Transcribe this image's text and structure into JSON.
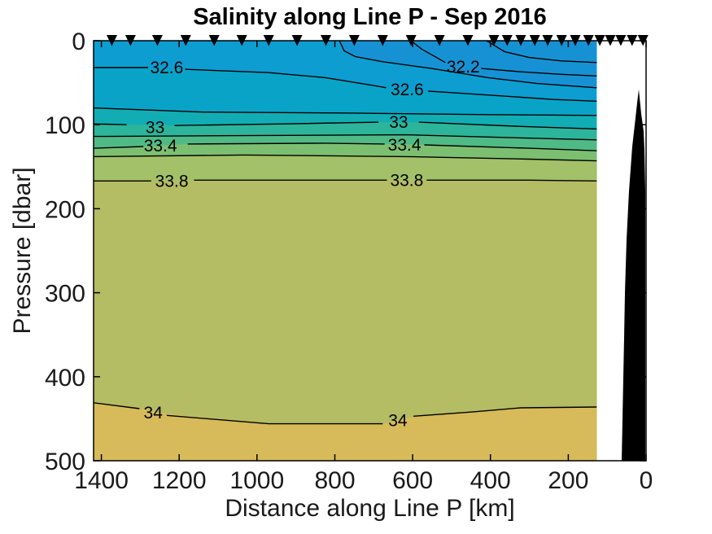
{
  "chart_data": {
    "type": "heatmap",
    "subtype": "filled-contour-section",
    "title": "Salinity along Line P - Sep 2016",
    "xlabel": "Distance along Line P [km]",
    "ylabel": "Pressure [dbar]",
    "xlim": [
      1420,
      0
    ],
    "ylim": [
      0,
      500
    ],
    "x_axis_reversed": true,
    "y_axis_reversed": true,
    "grid": false,
    "x_ticks": [
      1400,
      1200,
      1000,
      800,
      600,
      400,
      200,
      0
    ],
    "y_ticks": [
      0,
      100,
      200,
      300,
      400,
      500
    ],
    "data_min_km": 127,
    "surface_band_index": 3,
    "contour_interval": 0.2,
    "bands": [
      {
        "range": "< 32.0",
        "color": "#2B6AE1"
      },
      {
        "range": "32.0 - 32.2",
        "color": "#1F81D8"
      },
      {
        "range": "32.2 - 32.4",
        "color": "#1692D4"
      },
      {
        "range": "32.4 - 32.6",
        "color": "#0D9DD1"
      },
      {
        "range": "32.6 - 32.8",
        "color": "#0AA3C8"
      },
      {
        "range": "32.8 - 33.0",
        "color": "#12ADB4"
      },
      {
        "range": "33.0 - 33.2",
        "color": "#2CB59A"
      },
      {
        "range": "33.2 - 33.4",
        "color": "#4FBA85"
      },
      {
        "range": "33.4 - 33.6",
        "color": "#7CBF71"
      },
      {
        "range": "33.6 - 33.8",
        "color": "#A2C168"
      },
      {
        "range": "33.8 - 34.0",
        "color": "#B4BC64"
      },
      {
        "range": "> 34.0",
        "color": "#D7BA59"
      }
    ],
    "contours": [
      {
        "level": 32.0,
        "fill": {
          "mode": "above",
          "band": 0
        },
        "points": [
          [
            410,
            0
          ],
          [
            364,
            13
          ],
          [
            301,
            20
          ],
          [
            218,
            24
          ],
          [
            127,
            26
          ]
        ],
        "segments": [
          [
            [
              410,
              0
            ],
            [
              364,
              13
            ],
            [
              301,
              20
            ],
            [
              218,
              24
            ],
            [
              127,
              26
            ]
          ]
        ],
        "labels": []
      },
      {
        "level": 32.2,
        "fill": {
          "mode": "above",
          "band": 1
        },
        "points": [
          [
            604,
            0
          ],
          [
            577,
            10
          ],
          [
            542,
            19
          ],
          [
            516,
            26
          ],
          [
            470,
            31
          ],
          [
            424,
            33
          ],
          [
            322,
            37
          ],
          [
            218,
            40
          ],
          [
            127,
            42
          ]
        ],
        "segments": [
          [
            [
              604,
              0
            ],
            [
              577,
              10
            ],
            [
              542,
              19
            ],
            [
              516,
              26
            ]
          ],
          [
            [
              424,
              33
            ],
            [
              322,
              37
            ],
            [
              218,
              40
            ],
            [
              127,
              42
            ]
          ]
        ],
        "labels": [
          {
            "text": "32.2",
            "x": 470,
            "y": 31
          }
        ]
      },
      {
        "level": 32.4,
        "fill": {
          "mode": "above",
          "band": 2
        },
        "points": [
          [
            788,
            0
          ],
          [
            776,
            12
          ],
          [
            747,
            19
          ],
          [
            677,
            25
          ],
          [
            552,
            33
          ],
          [
            406,
            44
          ],
          [
            280,
            51
          ],
          [
            127,
            56
          ]
        ],
        "segments": [
          [
            [
              788,
              0
            ],
            [
              776,
              12
            ],
            [
              747,
              19
            ],
            [
              677,
              25
            ],
            [
              552,
              33
            ],
            [
              406,
              44
            ],
            [
              280,
              51
            ],
            [
              127,
              56
            ]
          ]
        ],
        "labels": []
      },
      {
        "level": 32.6,
        "fill": {
          "mode": "below",
          "band": 4
        },
        "points": [
          [
            1420,
            32
          ],
          [
            1280,
            32
          ],
          [
            1185,
            34
          ],
          [
            970,
            38
          ],
          [
            824,
            44
          ],
          [
            692,
            54
          ],
          [
            615,
            58
          ],
          [
            531,
            61
          ],
          [
            364,
            66
          ],
          [
            238,
            70
          ],
          [
            127,
            72
          ]
        ],
        "segments": [
          [
            [
              1420,
              32
            ],
            [
              1280,
              32
            ]
          ],
          [
            [
              1185,
              34
            ],
            [
              970,
              38
            ],
            [
              824,
              44
            ],
            [
              692,
              54
            ],
            [
              668,
              56
            ]
          ],
          [
            [
              560,
              60
            ],
            [
              364,
              66
            ],
            [
              238,
              70
            ],
            [
              127,
              72
            ]
          ]
        ],
        "labels": [
          {
            "text": "32.6",
            "x": 1232,
            "y": 32
          },
          {
            "text": "32.6",
            "x": 614,
            "y": 58
          }
        ]
      },
      {
        "level": 32.8,
        "fill": {
          "mode": "below",
          "band": 5
        },
        "points": [
          [
            1420,
            80
          ],
          [
            1138,
            85
          ],
          [
            782,
            86
          ],
          [
            406,
            88
          ],
          [
            127,
            89
          ]
        ],
        "segments": [
          [
            [
              1420,
              80
            ],
            [
              1138,
              85
            ],
            [
              782,
              86
            ],
            [
              406,
              88
            ],
            [
              127,
              89
            ]
          ]
        ],
        "labels": []
      },
      {
        "level": 33.0,
        "fill": {
          "mode": "below",
          "band": 6
        },
        "points": [
          [
            1420,
            99
          ],
          [
            1330,
            100
          ],
          [
            1222,
            101
          ],
          [
            929,
            99
          ],
          [
            682,
            97
          ],
          [
            590,
            97
          ],
          [
            322,
            102
          ],
          [
            127,
            105
          ]
        ],
        "segments": [
          [
            [
              1420,
              99
            ],
            [
              1335,
              100
            ]
          ],
          [
            [
              1212,
              101
            ],
            [
              929,
              99
            ],
            [
              688,
              97
            ]
          ],
          [
            [
              584,
              97
            ],
            [
              322,
              102
            ],
            [
              127,
              105
            ]
          ]
        ],
        "labels": [
          {
            "text": "33",
            "x": 1262,
            "y": 103
          },
          {
            "text": "33",
            "x": 636,
            "y": 97
          }
        ]
      },
      {
        "level": 33.2,
        "fill": {
          "mode": "below",
          "band": 7
        },
        "points": [
          [
            1420,
            114
          ],
          [
            1033,
            113
          ],
          [
            615,
            112
          ],
          [
            301,
            116
          ],
          [
            127,
            118
          ]
        ],
        "segments": [
          [
            [
              1420,
              114
            ],
            [
              1033,
              113
            ],
            [
              615,
              112
            ],
            [
              301,
              116
            ],
            [
              127,
              118
            ]
          ]
        ],
        "labels": []
      },
      {
        "level": 33.4,
        "fill": {
          "mode": "below",
          "band": 8
        },
        "points": [
          [
            1420,
            128
          ],
          [
            1290,
            126
          ],
          [
            1180,
            123
          ],
          [
            824,
            122
          ],
          [
            699,
            123
          ],
          [
            531,
            124
          ],
          [
            301,
            128
          ],
          [
            127,
            131
          ]
        ],
        "segments": [
          [
            [
              1420,
              128
            ],
            [
              1292,
              126
            ]
          ],
          [
            [
              1178,
              123
            ],
            [
              824,
              122
            ],
            [
              672,
              123
            ]
          ],
          [
            [
              570,
              124
            ],
            [
              301,
              128
            ],
            [
              127,
              131
            ]
          ]
        ],
        "labels": [
          {
            "text": "33.4",
            "x": 1248,
            "y": 125
          },
          {
            "text": "33.4",
            "x": 621,
            "y": 124
          }
        ]
      },
      {
        "level": 33.6,
        "fill": {
          "mode": "below",
          "band": 9
        },
        "points": [
          [
            1420,
            138
          ],
          [
            1033,
            136
          ],
          [
            615,
            138
          ],
          [
            301,
            141
          ],
          [
            127,
            143
          ]
        ],
        "segments": [
          [
            [
              1420,
              138
            ],
            [
              1033,
              136
            ],
            [
              615,
              138
            ],
            [
              301,
              141
            ],
            [
              127,
              143
            ]
          ]
        ],
        "labels": []
      },
      {
        "level": 33.8,
        "fill": {
          "mode": "below",
          "band": 10
        },
        "points": [
          [
            1420,
            167
          ],
          [
            1270,
            167
          ],
          [
            1165,
            166
          ],
          [
            719,
            166
          ],
          [
            301,
            166
          ],
          [
            127,
            167
          ]
        ],
        "segments": [
          [
            [
              1420,
              167
            ],
            [
              1272,
              167
            ]
          ],
          [
            [
              1162,
              166
            ],
            [
              719,
              166
            ],
            [
              666,
              166
            ]
          ],
          [
            [
              564,
              166
            ],
            [
              301,
              166
            ],
            [
              127,
              167
            ]
          ]
        ],
        "labels": [
          {
            "text": "33.8",
            "x": 1219,
            "y": 167
          },
          {
            "text": "33.8",
            "x": 615,
            "y": 166
          }
        ]
      },
      {
        "level": 34.0,
        "fill": {
          "mode": "below",
          "band": 11
        },
        "points": [
          [
            1420,
            431
          ],
          [
            1300,
            438
          ],
          [
            1235,
            444
          ],
          [
            970,
            456
          ],
          [
            677,
            456
          ],
          [
            600,
            448
          ],
          [
            447,
            442
          ],
          [
            322,
            437
          ],
          [
            127,
            436
          ]
        ],
        "segments": [
          [
            [
              1420,
              431
            ],
            [
              1302,
              438
            ]
          ],
          [
            [
              1232,
              446
            ],
            [
              970,
              456
            ],
            [
              677,
              456
            ]
          ],
          [
            [
              598,
              447
            ],
            [
              447,
              442
            ],
            [
              322,
              437
            ],
            [
              127,
              436
            ]
          ]
        ],
        "labels": [
          {
            "text": "34",
            "x": 1267,
            "y": 443
          },
          {
            "text": "34",
            "x": 638,
            "y": 452
          }
        ]
      }
    ],
    "station_distances_km": [
      1373,
      1325,
      1256,
      1183,
      1110,
      1039,
      970,
      897,
      823,
      750,
      677,
      604,
      531,
      458,
      391,
      357,
      322,
      286,
      253,
      217,
      182,
      148,
      119,
      92,
      65,
      36,
      8
    ],
    "bathymetry_outline": [
      [
        18.8,
        58
      ],
      [
        12.5,
        87
      ],
      [
        6.3,
        108
      ],
      [
        4.2,
        131
      ],
      [
        2,
        180
      ],
      [
        2,
        500
      ],
      [
        62.7,
        500
      ],
      [
        60.6,
        451
      ],
      [
        58.5,
        402
      ],
      [
        56.5,
        354
      ],
      [
        54.4,
        300
      ],
      [
        50.2,
        237
      ],
      [
        43.9,
        179
      ],
      [
        35.5,
        126
      ],
      [
        27.2,
        92
      ],
      [
        23,
        74
      ]
    ],
    "colors": {
      "contour_line": "#000000",
      "marker": "#000000",
      "bathymetry": "#000000",
      "axis": "#000000",
      "tick_text": "#1a1a1a"
    }
  }
}
